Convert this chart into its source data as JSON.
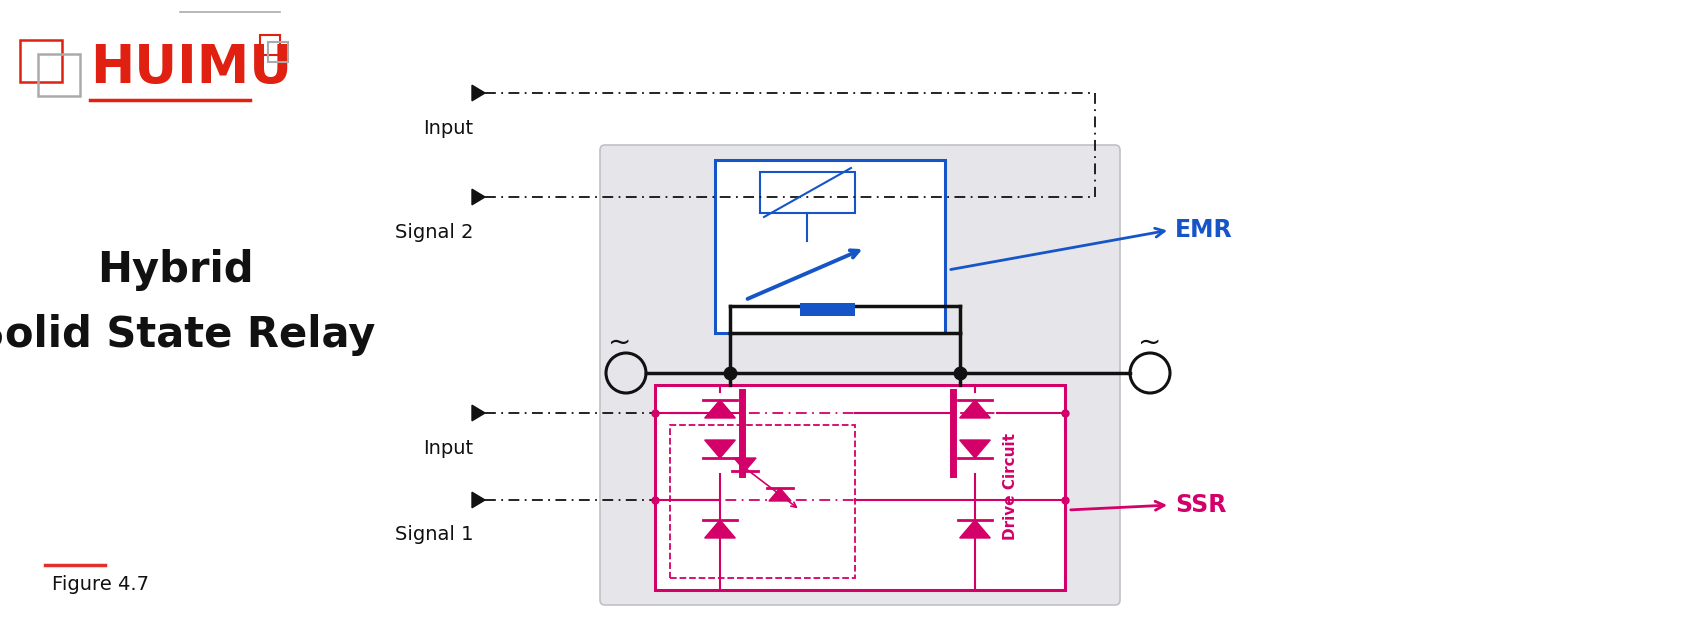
{
  "title_line1": "Hybrid",
  "title_line2": "Solid State Relay",
  "figure_label": "Figure 4.7",
  "emr_label": "EMR",
  "ssr_label": "SSR",
  "input_top": "Input",
  "signal2": "Signal 2",
  "input_bottom": "Input",
  "signal1": "Signal 1",
  "bg_color": "#ffffff",
  "gray_box_color": "#e6e6ea",
  "gray_box_edge": "#c0c0c8",
  "blue_color": "#1655c8",
  "magenta_color": "#d4006a",
  "black_color": "#111111",
  "red_color": "#e03030",
  "huimu_red": "#e02010",
  "fig_width": 1701,
  "fig_height": 628,
  "dpi": 100
}
